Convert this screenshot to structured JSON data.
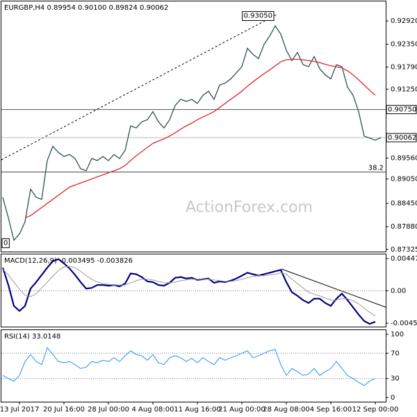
{
  "chart_data": [
    {
      "type": "line",
      "title": "EURGBP,H4 0.89954 0.90100 0.89824 0.90062",
      "watermark": "ActionForex.com",
      "categories": [
        null,
        null,
        null,
        "13 Jul 2017",
        null,
        null,
        null,
        null,
        null,
        null,
        null,
        "20 Jul 16:00",
        null,
        null,
        null,
        null,
        null,
        null,
        null,
        "28 Jul 00:00",
        null,
        null,
        null,
        null,
        null,
        null,
        null,
        "4 Aug 08:00",
        null,
        null,
        null,
        null,
        null,
        null,
        null,
        "11 Aug 16:00",
        null,
        null,
        null,
        null,
        null,
        null,
        null,
        "21 Aug 00:00",
        null,
        null,
        null,
        null,
        null,
        null,
        null,
        "28 Aug 08:00",
        null,
        null,
        null,
        null,
        null,
        null,
        null,
        "4 Sep 16:00",
        null,
        null,
        null,
        null,
        null,
        null,
        null,
        "12 Sep 00:00",
        null
      ],
      "series": [
        {
          "color": "#2f4f4f",
          "values": [
            0.886,
            0.881,
            0.8755,
            0.877,
            0.88,
            0.888,
            0.886,
            0.8855,
            0.895,
            0.8985,
            0.897,
            0.896,
            0.8965,
            0.8955,
            0.893,
            0.8925,
            0.8955,
            0.895,
            0.896,
            0.895,
            0.8965,
            0.8955,
            0.8975,
            0.9035,
            0.903,
            0.9045,
            0.905,
            0.907,
            0.9045,
            0.903,
            0.905,
            0.9085,
            0.91,
            0.9095,
            0.91,
            0.909,
            0.911,
            0.912,
            0.91,
            0.9135,
            0.914,
            0.915,
            0.9165,
            0.918,
            0.9225,
            0.921,
            0.92,
            0.9235,
            0.9255,
            0.928,
            0.926,
            0.922,
            0.9195,
            0.9215,
            0.9185,
            0.918,
            0.9205,
            0.9175,
            0.916,
            0.915,
            0.9185,
            0.918,
            0.913,
            0.911,
            0.907,
            0.901,
            0.9005,
            0.9,
            0.90062
          ]
        },
        {
          "color": "#e0262c",
          "values": [
            null,
            null,
            null,
            null,
            0.881,
            0.8815,
            0.8825,
            0.8835,
            0.8845,
            0.8855,
            0.8865,
            0.8875,
            0.8885,
            0.889,
            0.8895,
            0.89,
            0.8905,
            0.891,
            0.8915,
            0.892,
            0.8925,
            0.893,
            0.8938,
            0.895,
            0.8962,
            0.8972,
            0.8982,
            0.8992,
            0.8998,
            0.9003,
            0.901,
            0.9018,
            0.9027,
            0.9035,
            0.9042,
            0.905,
            0.9057,
            0.9063,
            0.907,
            0.908,
            0.909,
            0.91,
            0.911,
            0.912,
            0.9132,
            0.9143,
            0.9153,
            0.9163,
            0.9172,
            0.9182,
            0.9192,
            0.9197,
            0.9198,
            0.9198,
            0.9197,
            0.9195,
            0.9193,
            0.919,
            0.9186,
            0.9182,
            0.918,
            0.9177,
            0.917,
            0.916,
            0.9148,
            0.9135,
            0.9122,
            0.911,
            null
          ]
        }
      ],
      "ylim": [
        0.8727,
        0.934
      ],
      "yticks": [
        {
          "value": 0.9292,
          "label": "0.92920"
        },
        {
          "value": 0.9235,
          "label": "0.92350"
        },
        {
          "value": 0.9179,
          "label": "0.91790"
        },
        {
          "value": 0.9125,
          "label": "0.91250"
        },
        {
          "value": 0.8956,
          "label": "0.89560"
        },
        {
          "value": 0.8905,
          "label": "0.89050"
        },
        {
          "value": 0.8845,
          "label": "0.88450"
        },
        {
          "value": 0.8788,
          "label": "0.87880"
        },
        0.87325
      ],
      "levels": [
        {
          "value": 0.9075,
          "label": "0.90750",
          "color": "#555555"
        },
        {
          "value": 0.90062,
          "label": "0.90062",
          "color": "#bbbbbb"
        },
        {
          "value": 0.8922,
          "label": "38.2",
          "color": "#444444",
          "label_inside": true
        }
      ],
      "annotations": [
        {
          "value": 0.9305,
          "label": "0.93050",
          "index": 49
        },
        {
          "value": 0.8745,
          "label": "0",
          "index": 0
        }
      ]
    },
    {
      "type": "line",
      "title": "MACD(12,26,9) -0.003495 -0.003826",
      "series": [
        {
          "color": "#000080",
          "width": 2.2,
          "values": [
            0.0032,
            0.0008,
            -0.0021,
            -0.0028,
            -0.0021,
            0.0003,
            0.0012,
            0.0022,
            0.0032,
            0.0041,
            0.0044,
            0.0038,
            0.0031,
            0.0022,
            0.0012,
            0.0003,
            0.0004,
            0.0008,
            0.0008,
            0.0007,
            0.0008,
            0.0006,
            0.001,
            0.0024,
            0.0023,
            0.0019,
            0.0013,
            0.0012,
            0.0008,
            0.0007,
            0.0011,
            0.0018,
            0.0019,
            0.0017,
            0.0018,
            0.0015,
            0.0016,
            0.0017,
            0.0011,
            0.0013,
            0.0012,
            0.0014,
            0.0017,
            0.0021,
            0.0025,
            0.0023,
            0.0021,
            0.0023,
            0.0025,
            0.0027,
            0.0029,
            0.0012,
            -0.0002,
            -0.0007,
            -0.0013,
            -0.0017,
            -0.0011,
            -0.0011,
            -0.0017,
            -0.0021,
            -0.0011,
            -0.0004,
            -0.0013,
            -0.0023,
            -0.0033,
            -0.0042,
            -0.0046,
            -0.0043,
            null
          ]
        },
        {
          "color": "#999999",
          "width": 1,
          "values": [
            0.003,
            0.0022,
            0.0012,
            0.0002,
            -0.0006,
            -0.0008,
            -0.0004,
            0.0004,
            0.0012,
            0.002,
            0.0028,
            0.0033,
            0.0034,
            0.0032,
            0.0027,
            0.0021,
            0.0016,
            0.0012,
            0.001,
            0.0009,
            0.0008,
            0.0008,
            0.0008,
            0.0011,
            0.0014,
            0.0016,
            0.0016,
            0.0015,
            0.0013,
            0.0011,
            0.0011,
            0.0012,
            0.0014,
            0.0015,
            0.0016,
            0.0016,
            0.0016,
            0.0016,
            0.0015,
            0.0014,
            0.0013,
            0.0013,
            0.0014,
            0.0016,
            0.0018,
            0.002,
            0.0021,
            0.0021,
            0.0022,
            0.0023,
            0.0025,
            0.0023,
            0.0016,
            0.001,
            0.0004,
            -0.0002,
            -0.0005,
            -0.0007,
            -0.001,
            -0.0013,
            -0.0013,
            -0.0011,
            -0.0011,
            -0.0014,
            -0.0018,
            -0.0024,
            -0.003,
            -0.0035,
            null
          ]
        }
      ],
      "ylim": [
        -0.00498,
        0.00505
      ],
      "yticks": [
        0.004471,
        {
          "value": 0,
          "label": "0.00"
        },
        -0.004503
      ],
      "levels": [
        0
      ]
    },
    {
      "type": "line",
      "title": "RSI(14) 33.0148",
      "series": [
        {
          "color": "#1e90ff",
          "width": 1,
          "values": [
            35,
            30,
            26,
            35,
            57,
            68,
            57,
            52,
            79,
            68,
            57,
            55,
            57,
            52,
            46,
            48,
            57,
            55,
            59,
            57,
            63,
            57,
            66,
            74,
            68,
            66,
            59,
            68,
            55,
            52,
            63,
            66,
            63,
            57,
            62,
            55,
            63,
            57,
            52,
            63,
            59,
            63,
            66,
            70,
            74,
            63,
            66,
            70,
            74,
            76,
            52,
            35,
            46,
            41,
            35,
            37,
            46,
            35,
            41,
            46,
            57,
            46,
            35,
            30,
            24,
            19,
            26,
            30,
            null
          ]
        }
      ],
      "ylim": [
        -6.6,
        106.6
      ],
      "yticks": [
        100,
        70,
        30,
        0
      ],
      "levels": [
        70,
        30
      ]
    }
  ]
}
